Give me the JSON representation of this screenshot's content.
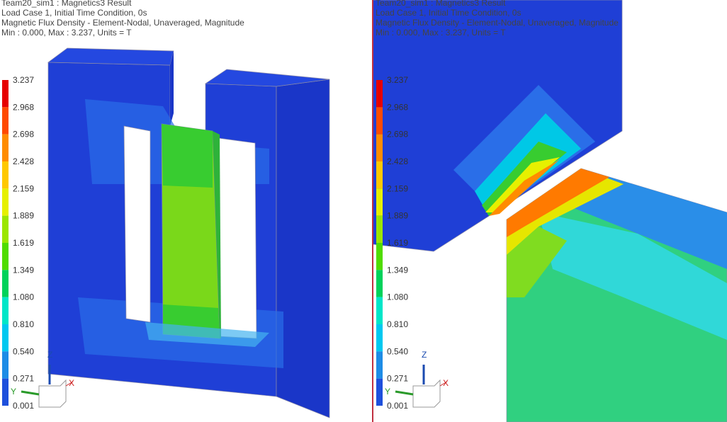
{
  "panels": [
    {
      "header": [
        "Team20_sim1 : Magnetics3 Result",
        "Load Case 1, Initial Time Condition, 0s",
        "Magnetic Flux Density - Element-Nodal, Unaveraged, Magnitude",
        "Min : 0.000, Max : 3.237, Units = T"
      ],
      "legend": [
        "3.237",
        "2.968",
        "2.698",
        "2.428",
        "2.159",
        "1.889",
        "1.619",
        "1.349",
        "1.080",
        "0.810",
        "0.540",
        "0.271",
        "0.001"
      ],
      "triad": {
        "x": "X",
        "y": "Y",
        "z": "Z"
      }
    },
    {
      "header": [
        "Team20_sim1 : Magnetics3 Result",
        "Load Case 1, Initial Time Condition, 0s",
        "Magnetic Flux Density - Element-Nodal, Unaveraged, Magnitude",
        "Min : 0.000, Max : 3.237, Units = T"
      ],
      "legend": [
        "3.237",
        "2.968",
        "2.698",
        "2.428",
        "2.159",
        "1.889",
        "1.619",
        "1.349",
        "1.080",
        "0.810",
        "0.540",
        "0.271",
        "0.001"
      ],
      "triad": {
        "x": "X",
        "y": "Y",
        "z": "Z"
      }
    }
  ]
}
